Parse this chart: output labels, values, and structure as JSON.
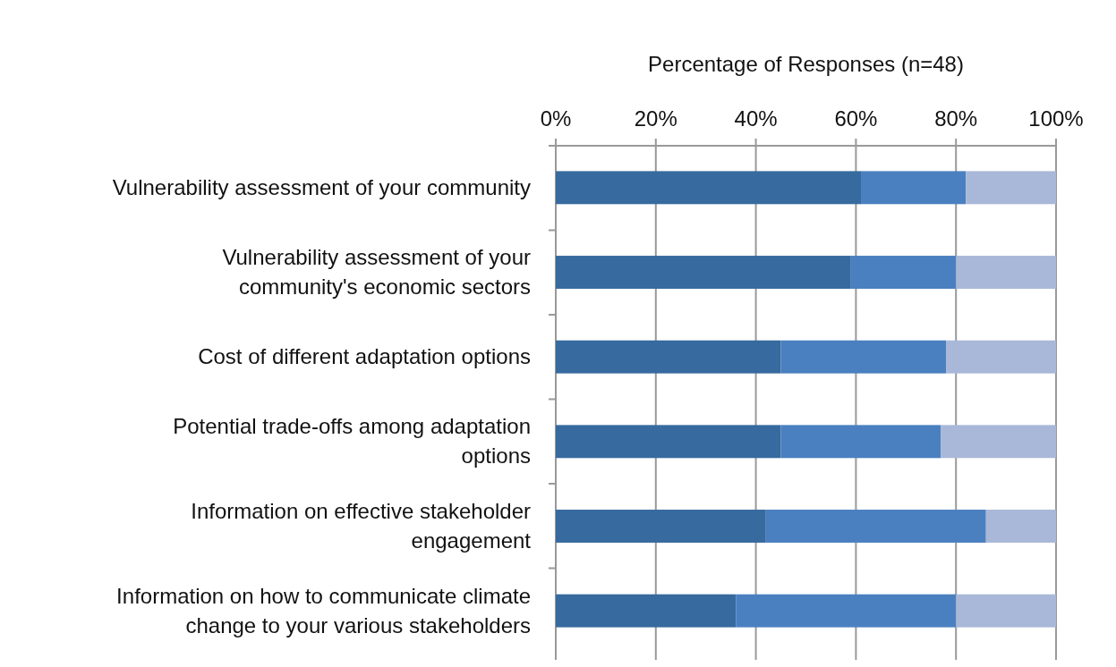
{
  "chart_data": {
    "type": "bar",
    "orientation": "horizontal",
    "stacked": true,
    "xlabel": "Percentage of Responses (n=48)",
    "categories": [
      "Vulnerability assessment of your community",
      "Vulnerability assessment of your community's economic sectors",
      "Cost of different adaptation options",
      "Potential trade-offs among adaptation options",
      "Information on effective stakeholder engagement",
      "Information on how to communicate climate change to your various stakeholders"
    ],
    "series": [
      {
        "color": "#376a9e",
        "values": [
          61,
          59,
          45,
          45,
          42,
          36
        ]
      },
      {
        "color": "#4a80c0",
        "values": [
          21,
          21,
          33,
          32,
          44,
          44
        ]
      },
      {
        "color": "#a9b8d8",
        "values": [
          18,
          20,
          22,
          23,
          14,
          20
        ]
      }
    ],
    "xlim": [
      0,
      100
    ],
    "xticks": [
      {
        "value": 0,
        "label": "0%"
      },
      {
        "value": 20,
        "label": "20%"
      },
      {
        "value": 40,
        "label": "40%"
      },
      {
        "value": 60,
        "label": "60%"
      },
      {
        "value": 80,
        "label": "80%"
      },
      {
        "value": 100,
        "label": "100%"
      }
    ],
    "grid": "x"
  }
}
